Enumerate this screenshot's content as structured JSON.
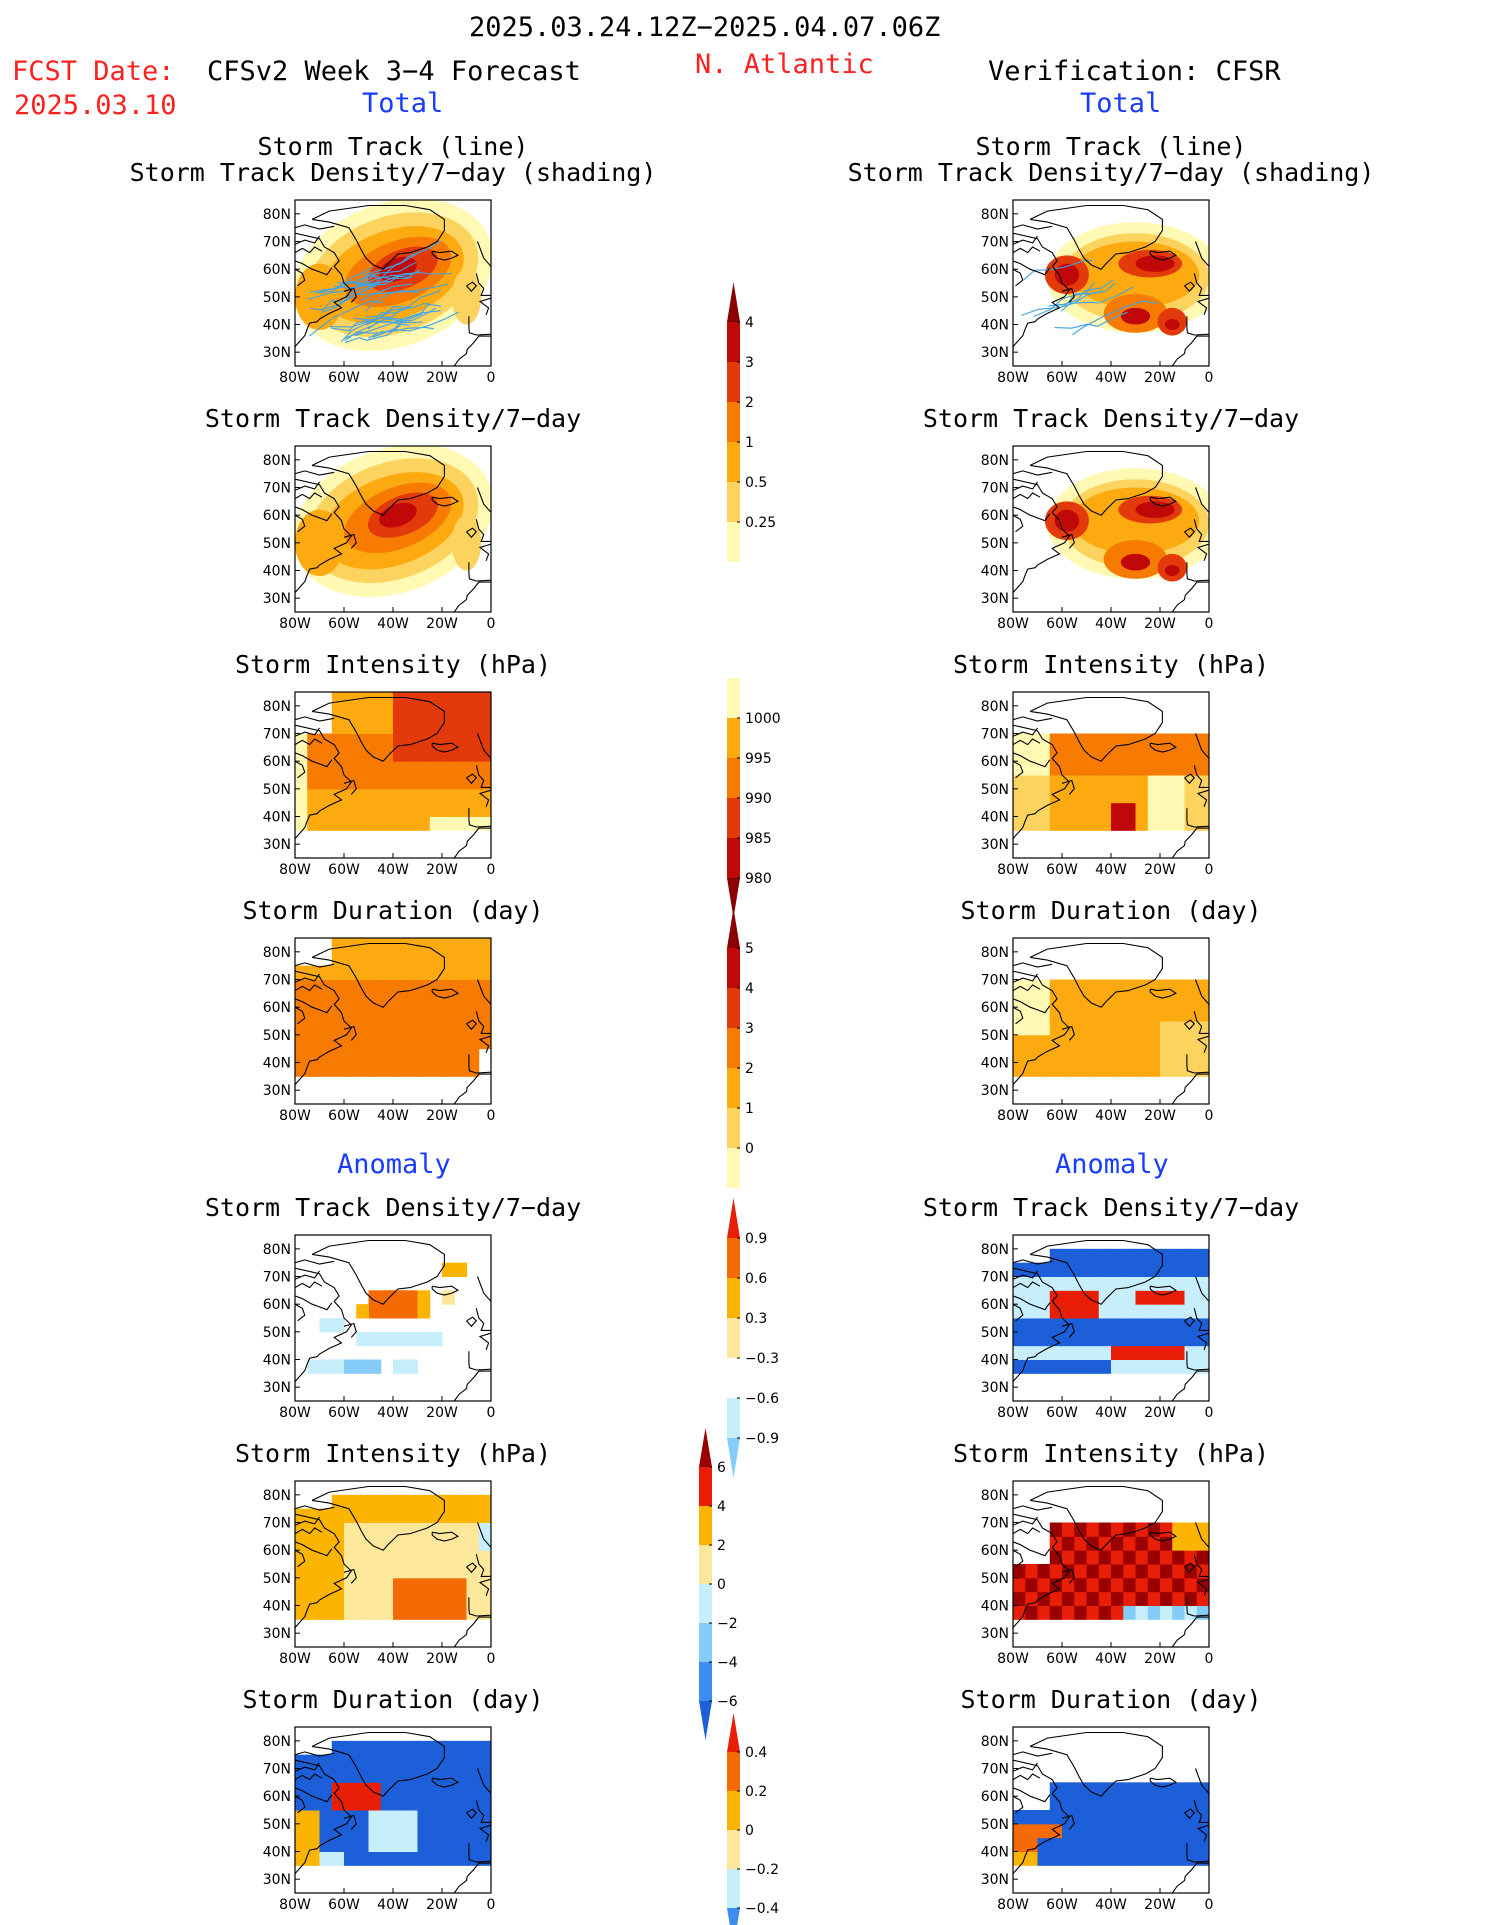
{
  "header": {
    "period": "2025.03.24.12Z−2025.04.07.06Z",
    "fcst_label": "FCST Date:",
    "fcst_date": "2025.03.10",
    "model": "CFSv2 Week 3−4 Forecast",
    "region": "N. Atlantic",
    "verification": "Verification: CFSR",
    "total_left": "Total",
    "total_right": "Total",
    "anomaly_left": "Anomaly",
    "anomaly_right": "Anomaly"
  },
  "panel_titles": {
    "track_line": "Storm Track (line)",
    "track_shading": "Storm Track Density/7−day (shading)",
    "density": "Storm Track Density/7−day",
    "intensity": "Storm Intensity (hPa)",
    "duration": "Storm Duration (day)"
  },
  "axes": {
    "lon_labels": [
      "80W",
      "60W",
      "40W",
      "20W",
      "0"
    ],
    "lat_labels": [
      "80N",
      "70N",
      "60N",
      "50N",
      "40N",
      "30N"
    ]
  },
  "colors": {
    "warm": [
      "#fff9b4",
      "#fdd35f",
      "#fdaa10",
      "#f77b00",
      "#e33a0b",
      "#c00808",
      "#8b0000"
    ],
    "anom_cool": [
      "#c6eefb",
      "#86ccf8",
      "#3d8df0",
      "#1c5fd8"
    ],
    "anom_warm": [
      "#fde79a",
      "#fbb400",
      "#f46a04",
      "#e91e06",
      "#9a0000"
    ],
    "track_lines": "#3ea4e6"
  },
  "colorbars": [
    {
      "name": "density-colorbar",
      "labels": [
        "4",
        "3",
        "2",
        "1",
        "0.5",
        "0.25"
      ]
    },
    {
      "name": "intensity-colorbar",
      "labels": [
        "1000",
        "995",
        "990",
        "985",
        "980"
      ]
    },
    {
      "name": "duration-colorbar",
      "labels": [
        "5",
        "4",
        "3",
        "2",
        "1",
        "0"
      ]
    },
    {
      "name": "density-anomaly-colorbar",
      "labels": [
        "0.9",
        "0.6",
        "0.3",
        "−0.3",
        "−0.6",
        "−0.9"
      ]
    },
    {
      "name": "intensity-anomaly-colorbar",
      "labels": [
        "6",
        "4",
        "2",
        "0",
        "−2",
        "−4",
        "−6"
      ]
    },
    {
      "name": "duration-anomaly-colorbar",
      "labels": [
        "0.4",
        "0.2",
        "0",
        "−0.2",
        "−0.4"
      ]
    }
  ]
}
